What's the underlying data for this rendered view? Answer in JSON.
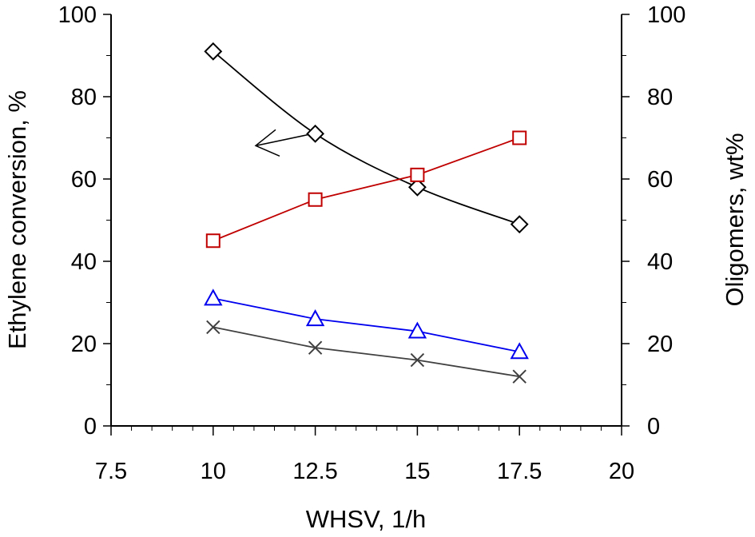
{
  "chart_data": {
    "type": "line",
    "title": "",
    "xlabel": "WHSV, 1/h",
    "ylabel": "Ethylene conversion, %",
    "y2label": "Oligomers, wt%",
    "xlim": [
      7.5,
      20
    ],
    "ylim": [
      0,
      100
    ],
    "y2lim": [
      0,
      100
    ],
    "x_ticks": [
      "7.5",
      "10",
      "12.5",
      "15",
      "17.5",
      "20"
    ],
    "y_ticks": [
      "0",
      "20",
      "40",
      "60",
      "80",
      "100"
    ],
    "y2_ticks": [
      "0",
      "20",
      "40",
      "60",
      "80",
      "100"
    ],
    "grid": false,
    "series": [
      {
        "key": "diamond",
        "axis": "left",
        "marker": "diamond",
        "color": "#000000",
        "x": [
          10,
          12.5,
          15,
          17.5
        ],
        "values": [
          91,
          71,
          58,
          49
        ]
      },
      {
        "key": "square",
        "axis": "right",
        "marker": "square",
        "color": "#c00000",
        "x": [
          10,
          12.5,
          15,
          17.5
        ],
        "values": [
          45,
          55,
          61,
          70
        ]
      },
      {
        "key": "triangle",
        "axis": "right",
        "marker": "triangle",
        "color": "#0000ee",
        "x": [
          10,
          12.5,
          15,
          17.5
        ],
        "values": [
          31,
          26,
          23,
          18
        ]
      },
      {
        "key": "cross",
        "axis": "right",
        "marker": "x",
        "color": "#404040",
        "x": [
          10,
          12.5,
          15,
          17.5
        ],
        "values": [
          24,
          19,
          16,
          12
        ]
      }
    ],
    "annotations": [
      {
        "type": "arrow",
        "points_to": "left-axis",
        "color": "#000000"
      }
    ]
  }
}
